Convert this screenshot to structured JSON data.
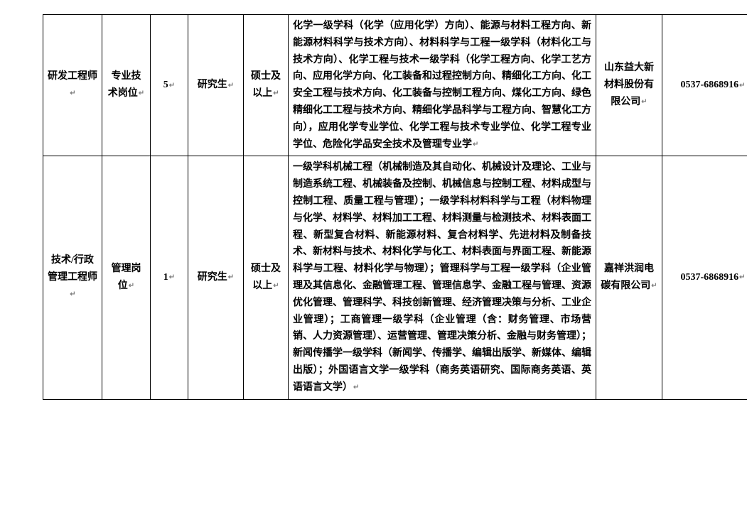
{
  "enter_mark": "↵",
  "rows": [
    {
      "position": "研发工程师",
      "type": "专业技术岗位",
      "count": "5",
      "education": "研究生",
      "degree": "硕士及以上",
      "requirements": "化学一级学科（化学（应用化学）方向）、能源与材料工程方向、新能源材料科学与技术方向）、材料科学与工程一级学科（材料化工与技术方向）、化学工程与技术一级学科（化学工程方向、化学工艺方向、应用化学方向、化工装备和过程控制方向、精细化工方向、化工安全工程与技术方向、化工装备与控制工程方向、煤化工方向、绿色精细化工工程与技术方向、精细化学品科学与工程方向、智慧化工方向），应用化学专业学位、化学工程与技术专业学位、化学工程专业学位、危险化学品安全技术及管理专业学",
      "company": "山东益大新材料股份有限公司",
      "phone": "0537-6868916"
    },
    {
      "position": "技术/行政管理工程师",
      "type": "管理岗位",
      "count": "1",
      "education": "研究生",
      "degree": "硕士及以上",
      "requirements": "一级学科机械工程（机械制造及其自动化、机械设计及理论、工业与制造系统工程、机械装备及控制、机械信息与控制工程、材料成型与控制工程、质量工程与管理）；一级学科材料科学与工程（材料物理与化学、材料学、材料加工工程、材料测量与检测技术、材料表面工程、新型复合材料、新能源材料、复合材料学、先进材料及制备技术、新材料与技术、材料化学与化工、材料表面与界面工程、新能源科学与工程、材料化学与物理）；管理科学与工程一级学科（企业管理及其信息化、金融管理工程、管理信息学、金融工程与管理、资源优化管理、管理科学、科技创新管理、经济管理决策与分析、工业企业管理）；工商管理一级学科（企业管理（含：财务管理、市场营销、人力资源管理）、运营管理、管理决策分析、金融与财务管理）；新闻传播学一级学科（新闻学、传播学、编辑出版学、新媒体、编辑出版）；外国语言文学一级学科（商务英语研究、国际商务英语、英语语言文学）",
      "company": "嘉祥洪润电碳有限公司",
      "phone": "0537-6868916"
    }
  ]
}
